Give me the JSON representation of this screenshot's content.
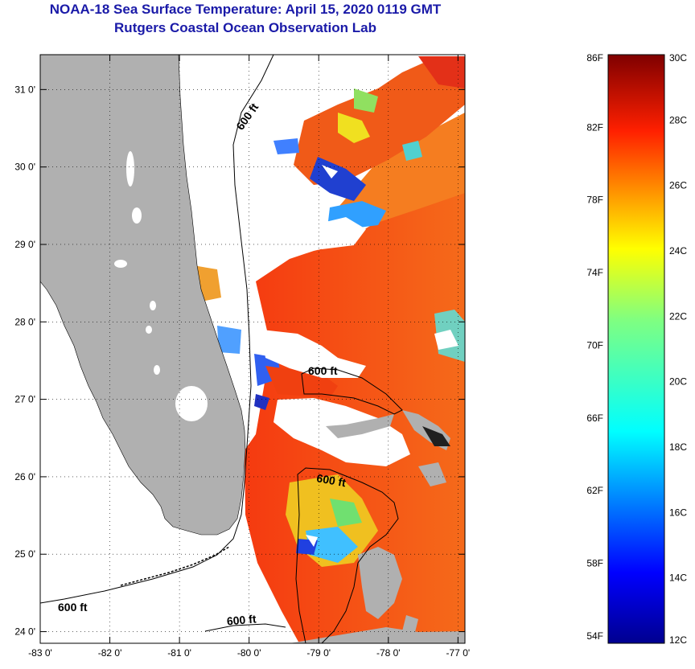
{
  "header": {
    "title": "NOAA-18 Sea Surface Temperature:  April 15, 2020 0119 GMT",
    "subtitle": "Rutgers Coastal Ocean Observation Lab"
  },
  "map": {
    "lon_range": [
      -83.0,
      -76.9
    ],
    "lat_range": [
      23.85,
      31.45
    ],
    "lon_ticks": [
      {
        "value": -83,
        "label": "-83 0'"
      },
      {
        "value": -82,
        "label": "-82 0'"
      },
      {
        "value": -81,
        "label": "-81 0'"
      },
      {
        "value": -80,
        "label": "-80 0'"
      },
      {
        "value": -79,
        "label": "-79 0'"
      },
      {
        "value": -78,
        "label": "-78 0'"
      },
      {
        "value": -77,
        "label": "-77 0'"
      }
    ],
    "lat_ticks": [
      {
        "value": 24,
        "label": "24 0'"
      },
      {
        "value": 25,
        "label": "25 0'"
      },
      {
        "value": 26,
        "label": "26 0'"
      },
      {
        "value": 27,
        "label": "27 0'"
      },
      {
        "value": 28,
        "label": "28 0'"
      },
      {
        "value": 29,
        "label": "29 0'"
      },
      {
        "value": 30,
        "label": "30 0'"
      },
      {
        "value": 31,
        "label": "31 0'"
      }
    ],
    "contour_labels": [
      "600 ft",
      "600 ft",
      "600 ft",
      "600 ft",
      "600 ft"
    ],
    "grid": "dotted",
    "land_color": "#b0b0b0"
  },
  "colorbar": {
    "f_labels": [
      "86F",
      "82F",
      "78F",
      "74F",
      "70F",
      "66F",
      "62F",
      "58F",
      "54F"
    ],
    "c_labels": [
      "30C",
      "28C",
      "26C",
      "24C",
      "22C",
      "20C",
      "18C",
      "16C",
      "14C",
      "12C"
    ],
    "range_c": [
      12,
      30
    ]
  }
}
